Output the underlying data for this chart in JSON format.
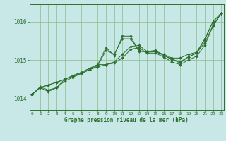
{
  "background_color": "#c8e8e8",
  "plot_bg_color": "#c8e8e8",
  "grid_color": "#88bb88",
  "line_color": "#2d6e2d",
  "title": "Graphe pression niveau de la mer (hPa)",
  "ylim": [
    1013.7,
    1016.45
  ],
  "xlim": [
    -0.3,
    23.3
  ],
  "yticks": [
    1014,
    1015,
    1016
  ],
  "xticks": [
    0,
    1,
    2,
    3,
    4,
    5,
    6,
    7,
    8,
    9,
    10,
    11,
    12,
    13,
    14,
    15,
    16,
    17,
    18,
    19,
    20,
    21,
    22,
    23
  ],
  "series": [
    [
      1014.1,
      1014.3,
      1014.22,
      1014.28,
      1014.45,
      1014.55,
      1014.65,
      1014.75,
      1014.85,
      1015.25,
      1015.15,
      1015.55,
      1015.55,
      1015.25,
      1015.2,
      1015.22,
      1015.15,
      1015.05,
      1015.05,
      1015.15,
      1015.2,
      1015.55,
      1016.0,
      1016.22
    ],
    [
      1014.1,
      1014.28,
      1014.18,
      1014.28,
      1014.5,
      1014.6,
      1014.68,
      1014.78,
      1014.88,
      1015.32,
      1015.12,
      1015.62,
      1015.62,
      1015.22,
      1015.22,
      1015.25,
      1015.12,
      1015.02,
      1014.95,
      1015.08,
      1015.18,
      1015.52,
      1016.0,
      1016.22
    ],
    [
      1014.1,
      1014.28,
      1014.35,
      1014.42,
      1014.5,
      1014.58,
      1014.68,
      1014.78,
      1014.88,
      1014.88,
      1014.95,
      1015.15,
      1015.35,
      1015.38,
      1015.22,
      1015.22,
      1015.12,
      1015.02,
      1014.92,
      1015.08,
      1015.18,
      1015.45,
      1015.9,
      1016.22
    ],
    [
      1014.1,
      1014.28,
      1014.35,
      1014.42,
      1014.5,
      1014.58,
      1014.65,
      1014.75,
      1014.82,
      1014.88,
      1014.92,
      1015.05,
      1015.28,
      1015.32,
      1015.18,
      1015.18,
      1015.08,
      1014.95,
      1014.88,
      1015.0,
      1015.1,
      1015.38,
      1015.88,
      1016.22
    ]
  ]
}
